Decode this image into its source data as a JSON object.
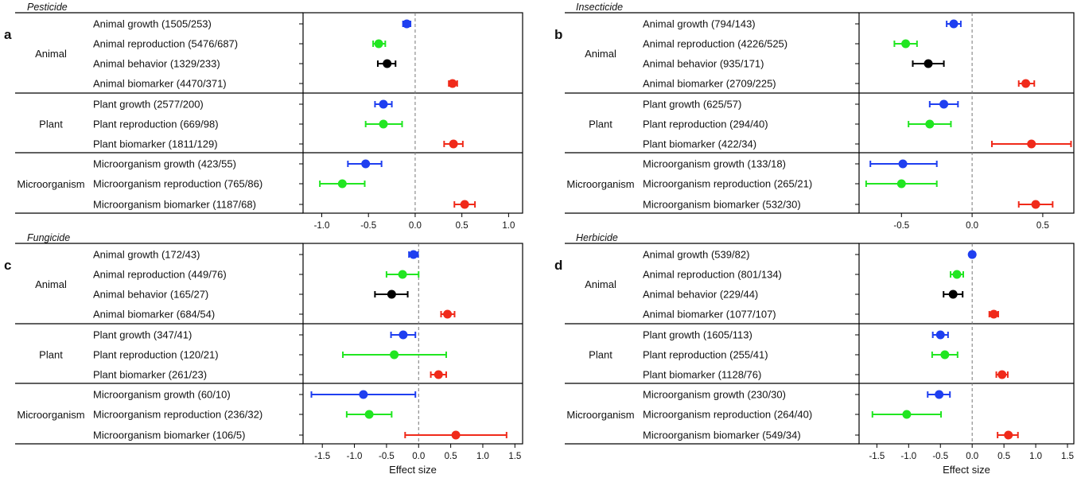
{
  "figure": {
    "xlabel": "Effect size"
  },
  "colors": {
    "growth": "#1f3ff0",
    "reproduction": "#21e621",
    "behavior": "#000000",
    "biomarker": "#f02a1a"
  },
  "chart_data": [
    {
      "type": "forest",
      "letter": "a",
      "title": "Pesticide",
      "xlim": [
        -1.2,
        1.15
      ],
      "xticks": [
        -1.0,
        -0.5,
        0.0,
        0.5,
        1.0
      ],
      "xtick_labels": [
        "-1.0",
        "-0.5",
        "0.0",
        "0.5",
        "1.0"
      ],
      "xlabel": "",
      "groups": [
        {
          "name": "Animal",
          "rows": [
            {
              "label": "Animal growth (1505/253)",
              "category": "growth",
              "est": -0.09,
              "lo": -0.13,
              "hi": -0.05
            },
            {
              "label": "Animal reproduction (5476/687)",
              "category": "reproduction",
              "est": -0.39,
              "lo": -0.45,
              "hi": -0.32
            },
            {
              "label": "Animal behavior (1329/233)",
              "category": "behavior",
              "est": -0.3,
              "lo": -0.4,
              "hi": -0.21
            },
            {
              "label": "Animal biomarker (4470/371)",
              "category": "biomarker",
              "est": 0.4,
              "lo": 0.36,
              "hi": 0.45
            }
          ]
        },
        {
          "name": "Plant",
          "rows": [
            {
              "label": "Plant growth (2577/200)",
              "category": "growth",
              "est": -0.34,
              "lo": -0.43,
              "hi": -0.25
            },
            {
              "label": "Plant reproduction (669/98)",
              "category": "reproduction",
              "est": -0.34,
              "lo": -0.53,
              "hi": -0.14
            },
            {
              "label": "Plant biomarker (1811/129)",
              "category": "biomarker",
              "est": 0.41,
              "lo": 0.31,
              "hi": 0.51
            }
          ]
        },
        {
          "name": "Microorganism",
          "rows": [
            {
              "label": "Microorganism growth (423/55)",
              "category": "growth",
              "est": -0.53,
              "lo": -0.72,
              "hi": -0.36
            },
            {
              "label": "Microorganism reproduction (765/86)",
              "category": "reproduction",
              "est": -0.78,
              "lo": -1.02,
              "hi": -0.54
            },
            {
              "label": "Microorganism biomarker (1187/68)",
              "category": "biomarker",
              "est": 0.53,
              "lo": 0.42,
              "hi": 0.64
            }
          ]
        }
      ]
    },
    {
      "type": "forest",
      "letter": "b",
      "title": "Insecticide",
      "xlim": [
        -0.8,
        0.72
      ],
      "xticks": [
        -0.5,
        0.0,
        0.5
      ],
      "xtick_labels": [
        "-0.5",
        "0.0",
        "0.5"
      ],
      "xlabel": "",
      "groups": [
        {
          "name": "Animal",
          "rows": [
            {
              "label": "Animal growth (794/143)",
              "category": "growth",
              "est": -0.13,
              "lo": -0.18,
              "hi": -0.08
            },
            {
              "label": "Animal reproduction (4226/525)",
              "category": "reproduction",
              "est": -0.47,
              "lo": -0.55,
              "hi": -0.39
            },
            {
              "label": "Animal behavior (935/171)",
              "category": "behavior",
              "est": -0.31,
              "lo": -0.42,
              "hi": -0.2
            },
            {
              "label": "Animal biomarker (2709/225)",
              "category": "biomarker",
              "est": 0.38,
              "lo": 0.33,
              "hi": 0.44
            }
          ]
        },
        {
          "name": "Plant",
          "rows": [
            {
              "label": "Plant growth (625/57)",
              "category": "growth",
              "est": -0.2,
              "lo": -0.3,
              "hi": -0.1
            },
            {
              "label": "Plant reproduction (294/40)",
              "category": "reproduction",
              "est": -0.3,
              "lo": -0.45,
              "hi": -0.15
            },
            {
              "label": "Plant biomarker (422/34)",
              "category": "biomarker",
              "est": 0.42,
              "lo": 0.14,
              "hi": 0.7
            }
          ]
        },
        {
          "name": "Microorganism",
          "rows": [
            {
              "label": "Microorganism growth (133/18)",
              "category": "growth",
              "est": -0.49,
              "lo": -0.72,
              "hi": -0.25
            },
            {
              "label": "Microorganism reproduction (265/21)",
              "category": "reproduction",
              "est": -0.5,
              "lo": -0.75,
              "hi": -0.25
            },
            {
              "label": "Microorganism biomarker (532/30)",
              "category": "biomarker",
              "est": 0.45,
              "lo": 0.33,
              "hi": 0.57
            }
          ]
        }
      ]
    },
    {
      "type": "forest",
      "letter": "c",
      "title": "Fungicide",
      "xlim": [
        -1.8,
        1.62
      ],
      "xticks": [
        -1.5,
        -1.0,
        -0.5,
        0.0,
        0.5,
        1.0,
        1.5
      ],
      "xtick_labels": [
        "-1.5",
        "-1.0",
        "-0.5",
        "0.0",
        "0.5",
        "1.0",
        "1.5"
      ],
      "xlabel": "Effect size",
      "groups": [
        {
          "name": "Animal",
          "rows": [
            {
              "label": "Animal growth (172/43)",
              "category": "growth",
              "est": -0.08,
              "lo": -0.15,
              "hi": -0.01
            },
            {
              "label": "Animal reproduction (449/76)",
              "category": "reproduction",
              "est": -0.25,
              "lo": -0.5,
              "hi": 0.0
            },
            {
              "label": "Animal behavior (165/27)",
              "category": "behavior",
              "est": -0.42,
              "lo": -0.68,
              "hi": -0.17
            },
            {
              "label": "Animal biomarker (684/54)",
              "category": "biomarker",
              "est": 0.45,
              "lo": 0.35,
              "hi": 0.56
            }
          ]
        },
        {
          "name": "Plant",
          "rows": [
            {
              "label": "Plant growth (347/41)",
              "category": "growth",
              "est": -0.24,
              "lo": -0.43,
              "hi": -0.05
            },
            {
              "label": "Plant reproduction (120/21)",
              "category": "reproduction",
              "est": -0.38,
              "lo": -1.18,
              "hi": 0.43
            },
            {
              "label": "Plant biomarker (261/23)",
              "category": "biomarker",
              "est": 0.31,
              "lo": 0.19,
              "hi": 0.43
            }
          ]
        },
        {
          "name": "Microorganism",
          "rows": [
            {
              "label": "Microorganism growth (60/10)",
              "category": "growth",
              "est": -0.86,
              "lo": -1.67,
              "hi": -0.05
            },
            {
              "label": "Microorganism reproduction (236/32)",
              "category": "reproduction",
              "est": -0.77,
              "lo": -1.12,
              "hi": -0.42
            },
            {
              "label": "Microorganism biomarker (106/5)",
              "category": "biomarker",
              "est": 0.58,
              "lo": -0.21,
              "hi": 1.37
            }
          ]
        }
      ]
    },
    {
      "type": "forest",
      "letter": "d",
      "title": "Herbicide",
      "xlim": [
        -1.78,
        1.6
      ],
      "xticks": [
        -1.5,
        -1.0,
        -0.5,
        0.0,
        0.5,
        1.0,
        1.5
      ],
      "xtick_labels": [
        "-1.5",
        "-1.0",
        "-0.5",
        "0.0",
        "0.5",
        "1.0",
        "1.5"
      ],
      "xlabel": "Effect size",
      "groups": [
        {
          "name": "Animal",
          "rows": [
            {
              "label": "Animal growth (539/82)",
              "category": "growth",
              "est": 0.0,
              "lo": -0.04,
              "hi": 0.04
            },
            {
              "label": "Animal reproduction (801/134)",
              "category": "reproduction",
              "est": -0.24,
              "lo": -0.34,
              "hi": -0.14
            },
            {
              "label": "Animal behavior (229/44)",
              "category": "behavior",
              "est": -0.3,
              "lo": -0.45,
              "hi": -0.15
            },
            {
              "label": "Animal biomarker (1077/107)",
              "category": "biomarker",
              "est": 0.34,
              "lo": 0.27,
              "hi": 0.41
            }
          ]
        },
        {
          "name": "Plant",
          "rows": [
            {
              "label": "Plant growth (1605/113)",
              "category": "growth",
              "est": -0.5,
              "lo": -0.62,
              "hi": -0.38
            },
            {
              "label": "Plant reproduction (255/41)",
              "category": "reproduction",
              "est": -0.43,
              "lo": -0.63,
              "hi": -0.23
            },
            {
              "label": "Plant biomarker (1128/76)",
              "category": "biomarker",
              "est": 0.47,
              "lo": 0.38,
              "hi": 0.56
            }
          ]
        },
        {
          "name": "Microorganism",
          "rows": [
            {
              "label": "Microorganism growth (230/30)",
              "category": "growth",
              "est": -0.52,
              "lo": -0.7,
              "hi": -0.35
            },
            {
              "label": "Microorganism reproduction (264/40)",
              "category": "reproduction",
              "est": -1.03,
              "lo": -1.57,
              "hi": -0.49
            },
            {
              "label": "Microorganism biomarker (549/34)",
              "category": "biomarker",
              "est": 0.57,
              "lo": 0.4,
              "hi": 0.72
            }
          ]
        }
      ]
    }
  ]
}
